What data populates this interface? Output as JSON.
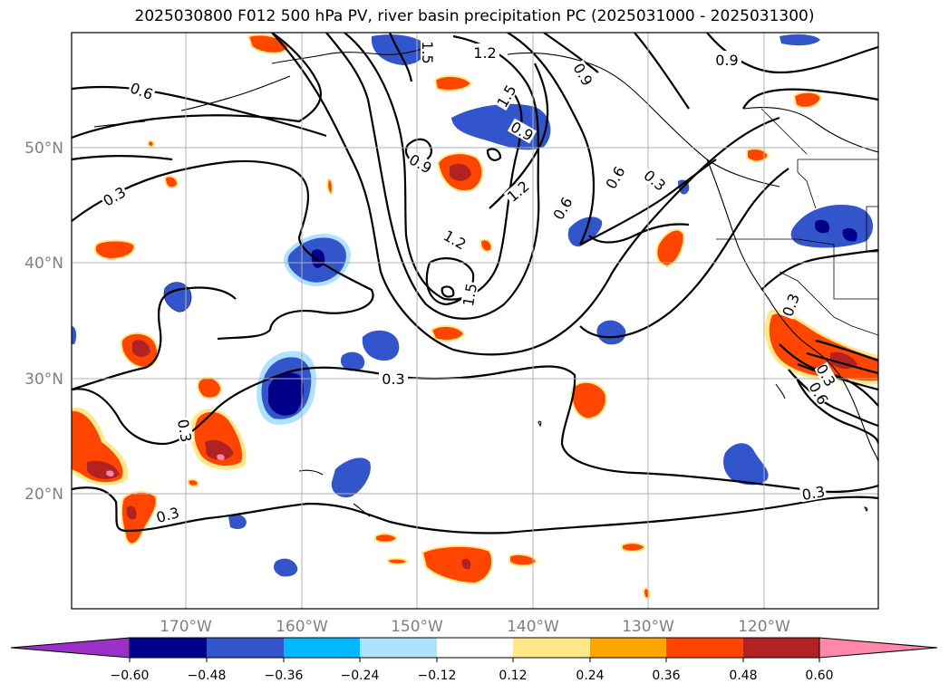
{
  "title": "2025030800 F012 500 hPa PV, river basin precipitation PC (2025031000 - 2025031300)",
  "map": {
    "lon_ticks": [
      "170°W",
      "160°W",
      "150°W",
      "140°W",
      "130°W",
      "120°W"
    ],
    "lat_ticks": [
      "50°N",
      "40°N",
      "30°N",
      "20°N"
    ],
    "gridlines": true
  },
  "contour_labels": [
    "1.2",
    "1.5",
    "0.9",
    "0.6",
    "0.9",
    "1.5",
    "0.9",
    "1.2",
    "0.6",
    "0.3",
    "0.3",
    "0.6",
    "0.9",
    "1.2",
    "1.5",
    "0.3",
    "0.3",
    "0.3",
    "0.3",
    "0.3",
    "0.3",
    "0.6"
  ],
  "colorbar": {
    "ticks": [
      "−0.60",
      "−0.48",
      "−0.36",
      "−0.24",
      "−0.12",
      "0.12",
      "0.24",
      "0.36",
      "0.48",
      "0.60"
    ],
    "colors": [
      "#9b30c8",
      "#00008b",
      "#3355cc",
      "#00b8ff",
      "#aee2ff",
      "#ffffff",
      "#ffe88a",
      "#ffa500",
      "#ff4500",
      "#b22222",
      "#ff88aa",
      "#ff88aa"
    ]
  },
  "colors": {
    "neg_strong": "#00008b",
    "neg_mid": "#3355cc",
    "neg_light": "#00b8ff",
    "neg_pale": "#aee2ff",
    "pos_pale": "#ffe88a",
    "pos_light": "#ffa500",
    "pos_mid": "#ff4500",
    "pos_strong": "#b22222",
    "pos_max": "#ff88aa"
  }
}
